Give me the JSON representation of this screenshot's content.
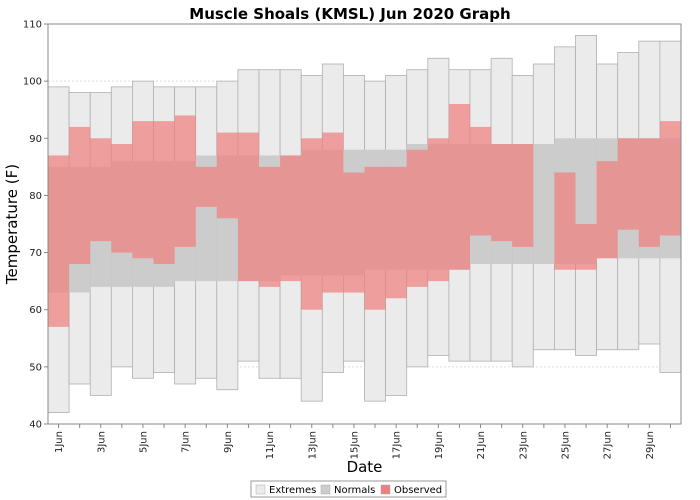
{
  "chart_data": {
    "type": "bar",
    "title": "Muscle Shoals (KMSL) Jun 2020 Graph",
    "xlabel": "Date",
    "ylabel": "Temperature (F)",
    "ylim": [
      40,
      110
    ],
    "yticks": [
      40,
      50,
      60,
      70,
      80,
      90,
      100,
      110
    ],
    "grid": true,
    "categories": [
      "1Jun",
      "2Jun",
      "3Jun",
      "4Jun",
      "5Jun",
      "6Jun",
      "7Jun",
      "8Jun",
      "9Jun",
      "10Jun",
      "11Jun",
      "12Jun",
      "13Jun",
      "14Jun",
      "15Jun",
      "16Jun",
      "17Jun",
      "18Jun",
      "19Jun",
      "20Jun",
      "21Jun",
      "22Jun",
      "23Jun",
      "24Jun",
      "25Jun",
      "26Jun",
      "27Jun",
      "28Jun",
      "29Jun",
      "30Jun"
    ],
    "xtick_labels": [
      "1Jun",
      "",
      "3Jun",
      "",
      "5Jun",
      "",
      "7Jun",
      "",
      "9Jun",
      "",
      "11Jun",
      "",
      "13Jun",
      "",
      "15Jun",
      "",
      "17Jun",
      "",
      "19Jun",
      "",
      "21Jun",
      "",
      "23Jun",
      "",
      "25Jun",
      "",
      "27Jun",
      "",
      "29Jun",
      ""
    ],
    "series": [
      {
        "name": "Extremes",
        "color": "#ebebeb",
        "low": [
          42,
          47,
          45,
          50,
          48,
          49,
          47,
          48,
          46,
          51,
          48,
          48,
          44,
          49,
          51,
          44,
          45,
          50,
          52,
          51,
          51,
          51,
          50,
          53,
          53,
          52,
          53,
          53,
          54,
          49
        ],
        "high": [
          99,
          98,
          98,
          99,
          100,
          99,
          99,
          99,
          100,
          102,
          102,
          102,
          101,
          103,
          101,
          100,
          101,
          102,
          104,
          102,
          102,
          104,
          101,
          103,
          106,
          108,
          103,
          105,
          107,
          107
        ]
      },
      {
        "name": "Normals",
        "color": "#cccccc",
        "low": [
          63,
          63,
          64,
          64,
          64,
          64,
          65,
          65,
          65,
          65,
          65,
          66,
          66,
          66,
          66,
          67,
          67,
          67,
          67,
          67,
          68,
          68,
          68,
          68,
          68,
          68,
          69,
          69,
          69,
          69
        ],
        "high": [
          85,
          85,
          85,
          86,
          86,
          86,
          86,
          87,
          87,
          87,
          87,
          87,
          88,
          88,
          88,
          88,
          88,
          89,
          89,
          89,
          89,
          89,
          89,
          89,
          90,
          90,
          90,
          90,
          90,
          90
        ]
      },
      {
        "name": "Observed",
        "color": "#f08080",
        "low": [
          57,
          68,
          72,
          70,
          69,
          68,
          71,
          78,
          76,
          65,
          64,
          65,
          60,
          63,
          63,
          60,
          62,
          64,
          65,
          67,
          73,
          72,
          71,
          89,
          67,
          67,
          69,
          74,
          71,
          73
        ],
        "high": [
          87,
          92,
          90,
          89,
          93,
          93,
          94,
          85,
          91,
          91,
          85,
          87,
          90,
          91,
          84,
          85,
          85,
          88,
          90,
          96,
          92,
          89,
          89,
          89,
          84,
          75,
          86,
          90,
          90,
          93
        ]
      }
    ],
    "legend": {
      "placement": "bottom-center",
      "entries": [
        "Extremes",
        "Normals",
        "Observed"
      ]
    }
  }
}
